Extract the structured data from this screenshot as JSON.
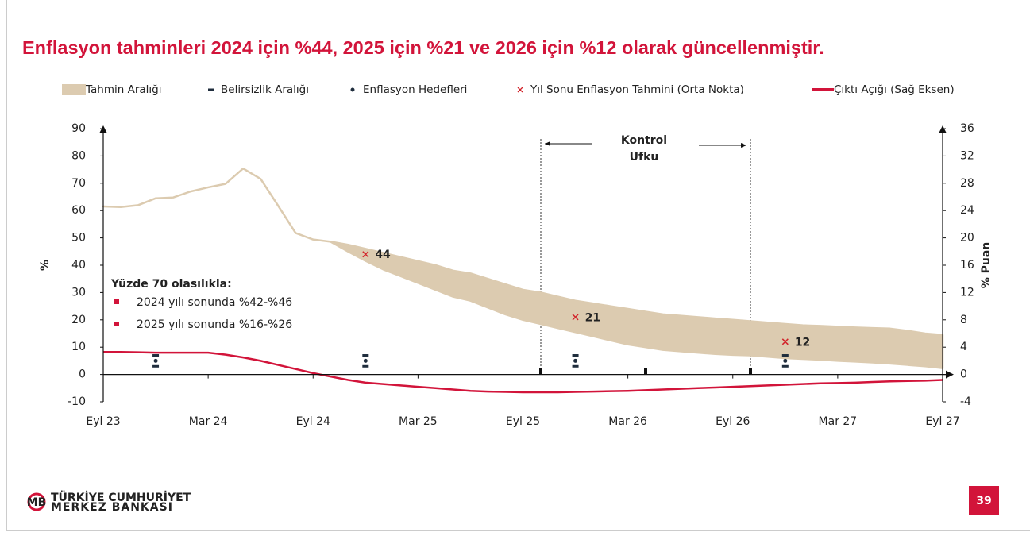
{
  "title": "Enflasyon tahminleri 2024 için %44, 2025 için %21 ve 2026 için %12 olarak güncellenmiştir.",
  "chart_data": {
    "type": "line",
    "ylabel": "%",
    "y2label": "% Puan",
    "categories": [
      "Eyl 23",
      null,
      null,
      null,
      null,
      null,
      "Mar 24",
      null,
      null,
      null,
      null,
      null,
      "Eyl 24",
      null,
      null,
      null,
      null,
      null,
      "Mar 25",
      null,
      null,
      null,
      null,
      null,
      "Eyl 25",
      null,
      null,
      null,
      null,
      null,
      "Mar 26",
      null,
      null,
      null,
      null,
      null,
      "Eyl 26",
      null,
      null,
      null,
      null,
      null,
      "Mar 27",
      null,
      null,
      null,
      null,
      null,
      "Eyl 27"
    ],
    "ylim": [
      -10,
      90
    ],
    "yticks": [
      -10,
      0,
      10,
      20,
      30,
      40,
      50,
      60,
      70,
      80,
      90
    ],
    "y2lim": [
      -4,
      36
    ],
    "y2ticks": [
      -4,
      0,
      4,
      8,
      12,
      16,
      20,
      24,
      28,
      32,
      36
    ],
    "series": [
      {
        "name": "Tahmin Aralığı",
        "kind": "band",
        "color": "#dccbb0",
        "values": [
          61.5,
          61.3,
          62,
          64.5,
          64.8,
          67,
          68.5,
          69.8,
          75.4,
          71.6,
          61.8,
          51.8,
          49.4,
          48.6,
          47.5,
          46,
          44.5,
          43,
          41.5,
          40,
          38,
          37,
          35,
          33,
          31,
          30,
          28.5,
          27,
          26,
          25,
          24,
          23,
          22,
          21.5,
          21,
          20.5,
          20,
          19.5,
          19,
          18.5,
          18,
          17.8,
          17.5,
          17.2,
          17,
          16.8,
          16,
          15,
          14.5
        ],
        "lower": [
          61.5,
          61.3,
          62,
          64.5,
          64.8,
          67,
          68.5,
          69.8,
          75.4,
          71.6,
          61.8,
          51.8,
          49.4,
          48.6,
          45,
          41.6,
          38.5,
          36,
          33.5,
          31,
          28.5,
          27,
          24.5,
          22,
          20,
          18.5,
          17,
          15.5,
          14,
          12.5,
          11,
          10,
          9,
          8.5,
          8,
          7.5,
          7.2,
          7,
          6.5,
          6,
          5.7,
          5.4,
          5,
          4.7,
          4.4,
          4,
          3.5,
          3,
          2.3
        ]
      },
      {
        "name": "Belirsizlik Aralığı",
        "kind": "range",
        "color": "#1f2d3d",
        "values": [
          null,
          null,
          null,
          7,
          null,
          null,
          null,
          null,
          null,
          null,
          null,
          null,
          null,
          null,
          null,
          7,
          null,
          null,
          null,
          null,
          null,
          null,
          null,
          null,
          null,
          null,
          null,
          7,
          null,
          null,
          null,
          null,
          null,
          null,
          null,
          null,
          null,
          null,
          null,
          7,
          null,
          null,
          null,
          null,
          null,
          null,
          null,
          null,
          null
        ],
        "lower": [
          null,
          null,
          null,
          3,
          null,
          null,
          null,
          null,
          null,
          null,
          null,
          null,
          null,
          null,
          null,
          3,
          null,
          null,
          null,
          null,
          null,
          null,
          null,
          null,
          null,
          null,
          null,
          3,
          null,
          null,
          null,
          null,
          null,
          null,
          null,
          null,
          null,
          null,
          null,
          3,
          null,
          null,
          null,
          null,
          null,
          null,
          null,
          null,
          null
        ]
      },
      {
        "name": "Enflasyon Hedefleri",
        "kind": "dot",
        "color": "#1f2d3d",
        "values": [
          null,
          null,
          null,
          5,
          null,
          null,
          null,
          null,
          null,
          null,
          null,
          null,
          null,
          null,
          null,
          5,
          null,
          null,
          null,
          null,
          null,
          null,
          null,
          null,
          null,
          null,
          null,
          5,
          null,
          null,
          null,
          null,
          null,
          null,
          null,
          null,
          null,
          null,
          null,
          5,
          null,
          null,
          null,
          null,
          null,
          null,
          null,
          null,
          null
        ]
      },
      {
        "name": "Yıl Sonu Enflasyon Tahmini (Orta Nokta)",
        "kind": "cross",
        "color": "#d2232a",
        "values": [
          null,
          null,
          null,
          null,
          null,
          null,
          null,
          null,
          null,
          null,
          null,
          null,
          null,
          null,
          null,
          44,
          null,
          null,
          null,
          null,
          null,
          null,
          null,
          null,
          null,
          null,
          null,
          21,
          null,
          null,
          null,
          null,
          null,
          null,
          null,
          null,
          null,
          null,
          null,
          12,
          null,
          null,
          null,
          null,
          null,
          null,
          null,
          null,
          null
        ]
      },
      {
        "name": "Çıktı Açığı (Sağ Eksen)",
        "kind": "line",
        "color": "#d2143a",
        "axis": "y2",
        "values": [
          3.3,
          3.3,
          3.25,
          3.2,
          3.2,
          3.2,
          3.2,
          2.9,
          2.5,
          2,
          1.4,
          0.8,
          0.2,
          -0.3,
          -0.8,
          -1.2,
          -1.4,
          -1.6,
          -1.8,
          -2,
          -2.2,
          -2.4,
          -2.5,
          -2.55,
          -2.6,
          -2.6,
          -2.6,
          -2.55,
          -2.5,
          -2.45,
          -2.4,
          -2.3,
          -2.2,
          -2.1,
          -2,
          -1.9,
          -1.8,
          -1.7,
          -1.6,
          -1.5,
          -1.4,
          -1.3,
          -1.25,
          -1.2,
          -1.1,
          -1,
          -0.95,
          -0.9,
          -0.8
        ]
      }
    ],
    "annotations": {
      "horizon": [
        "Kontrol",
        "Ufku"
      ],
      "box_title": "Yüzde 70 olasılıkla:",
      "box_items": [
        "2024 yılı sonunda %42-%46",
        "2025 yılı sonunda %16-%26"
      ]
    }
  },
  "footer": {
    "org_line1": "TÜRKİYE CUMHURİYET",
    "org_line2": "MERKEZ BANKASI",
    "page": "39"
  }
}
